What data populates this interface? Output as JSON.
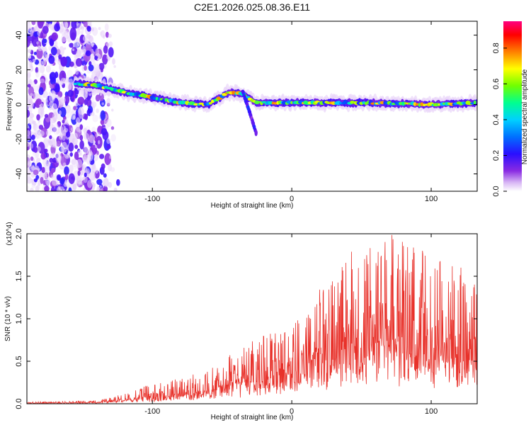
{
  "figure_title": "C2E1.2026.025.08.36.E11",
  "chart_data": [
    {
      "type": "heatmap",
      "title": "C2E1.2026.025.08.36.E11",
      "xlabel": "Height of straight line (km)",
      "ylabel": "Frequency (Hz)",
      "xlim": [
        -190,
        133
      ],
      "ylim": [
        -50,
        48
      ],
      "xticks": [
        -100,
        0,
        100
      ],
      "yticks": [
        -40,
        -20,
        0,
        20,
        40
      ],
      "colorbar": {
        "label": "Normalized spectral amplitude",
        "range": [
          0,
          0.95
        ],
        "ticks": [
          "0.0",
          "0.2",
          "0.4",
          "0.6",
          "0.8"
        ],
        "colormap": [
          "#ffffff",
          "#d9b8f5",
          "#8a2be2",
          "#3b0fff",
          "#0050ff",
          "#00c8ff",
          "#00ff80",
          "#80ff00",
          "#ffff00",
          "#ff8000",
          "#ff0000",
          "#ff0080"
        ]
      },
      "features": [
        {
          "name": "noise region",
          "x_range": [
            -190,
            -130
          ],
          "freq_range": [
            -50,
            48
          ],
          "amplitude": 0.15
        },
        {
          "name": "main ridge",
          "points": [
            [
              -155,
              12
            ],
            [
              -140,
              11
            ],
            [
              -120,
              7
            ],
            [
              -100,
              4
            ],
            [
              -80,
              1
            ],
            [
              -60,
              0
            ],
            [
              -45,
              7
            ],
            [
              -35,
              6
            ],
            [
              -25,
              1
            ],
            [
              0,
              1
            ],
            [
              50,
              1
            ],
            [
              100,
              0
            ],
            [
              133,
              1
            ]
          ],
          "amplitude": 0.6
        },
        {
          "name": "branch",
          "points": [
            [
              -35,
              7
            ],
            [
              -30,
              -5
            ],
            [
              -25,
              -18
            ]
          ],
          "amplitude": 0.3
        }
      ]
    },
    {
      "type": "line",
      "title": "",
      "xlabel": "Height of straight line (km)",
      "ylabel": "SNR (10 * v/v)",
      "y_multiplier": "(x10^4)",
      "xlim": [
        -190,
        133
      ],
      "ylim": [
        0,
        2.0
      ],
      "xticks": [
        -100,
        0,
        100
      ],
      "yticks": [
        "0.0",
        "0.5",
        "1.0",
        "1.5",
        "2.0"
      ],
      "series": [
        {
          "name": "SNR",
          "color": "#e8312a",
          "envelope": [
            {
              "x": -190,
              "mean": 0.01,
              "peak": 0.02
            },
            {
              "x": -140,
              "mean": 0.02,
              "peak": 0.04
            },
            {
              "x": -120,
              "mean": 0.06,
              "peak": 0.12
            },
            {
              "x": -100,
              "mean": 0.1,
              "peak": 0.25
            },
            {
              "x": -80,
              "mean": 0.14,
              "peak": 0.3
            },
            {
              "x": -60,
              "mean": 0.2,
              "peak": 0.4
            },
            {
              "x": -40,
              "mean": 0.3,
              "peak": 0.65
            },
            {
              "x": -20,
              "mean": 0.4,
              "peak": 0.8
            },
            {
              "x": 0,
              "mean": 0.45,
              "peak": 0.9
            },
            {
              "x": 15,
              "mean": 0.55,
              "peak": 1.2
            },
            {
              "x": 30,
              "mean": 0.8,
              "peak": 1.75
            },
            {
              "x": 50,
              "mean": 0.9,
              "peak": 1.85
            },
            {
              "x": 70,
              "mean": 0.95,
              "peak": 2.0
            },
            {
              "x": 90,
              "mean": 0.9,
              "peak": 1.85
            },
            {
              "x": 110,
              "mean": 0.85,
              "peak": 1.75
            },
            {
              "x": 133,
              "mean": 0.7,
              "peak": 1.5
            }
          ]
        }
      ]
    }
  ]
}
